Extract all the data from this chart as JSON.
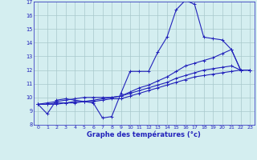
{
  "xlabel": "Graphe des températures (°c)",
  "hours": [
    0,
    1,
    2,
    3,
    4,
    5,
    6,
    7,
    8,
    9,
    10,
    11,
    12,
    13,
    14,
    15,
    16,
    17,
    18,
    19,
    20,
    21,
    22,
    23
  ],
  "temp_main": [
    9.5,
    8.8,
    9.8,
    9.9,
    9.8,
    9.7,
    9.6,
    8.5,
    8.6,
    10.3,
    11.9,
    11.9,
    11.9,
    13.3,
    14.4,
    16.4,
    17.1,
    16.8,
    14.4,
    14.3,
    14.2,
    13.5,
    12.0,
    12.0
  ],
  "temp_line2": [
    9.5,
    9.6,
    9.7,
    9.8,
    9.9,
    10.0,
    10.0,
    10.0,
    10.0,
    10.1,
    10.4,
    10.7,
    10.9,
    11.2,
    11.5,
    11.9,
    12.3,
    12.5,
    12.7,
    12.9,
    13.2,
    13.5,
    12.0,
    12.0
  ],
  "temp_line3": [
    9.5,
    9.5,
    9.6,
    9.6,
    9.7,
    9.7,
    9.8,
    9.9,
    10.0,
    10.1,
    10.3,
    10.5,
    10.7,
    10.9,
    11.1,
    11.4,
    11.6,
    11.8,
    12.0,
    12.1,
    12.2,
    12.3,
    12.0,
    12.0
  ],
  "temp_line4": [
    9.5,
    9.5,
    9.5,
    9.6,
    9.6,
    9.7,
    9.7,
    9.8,
    9.9,
    9.9,
    10.1,
    10.3,
    10.5,
    10.7,
    10.9,
    11.1,
    11.3,
    11.5,
    11.6,
    11.7,
    11.8,
    11.9,
    12.0,
    12.0
  ],
  "line_color": "#2222bb",
  "bg_color": "#d4eef0",
  "grid_color": "#a8c8cc",
  "ylim": [
    8,
    17
  ],
  "xlim": [
    -0.5,
    23.5
  ],
  "yticks": [
    8,
    9,
    10,
    11,
    12,
    13,
    14,
    15,
    16,
    17
  ],
  "xticks": [
    0,
    1,
    2,
    3,
    4,
    5,
    6,
    7,
    8,
    9,
    10,
    11,
    12,
    13,
    14,
    15,
    16,
    17,
    18,
    19,
    20,
    21,
    22,
    23
  ],
  "marker": "+",
  "markersize": 3,
  "linewidth": 0.8
}
